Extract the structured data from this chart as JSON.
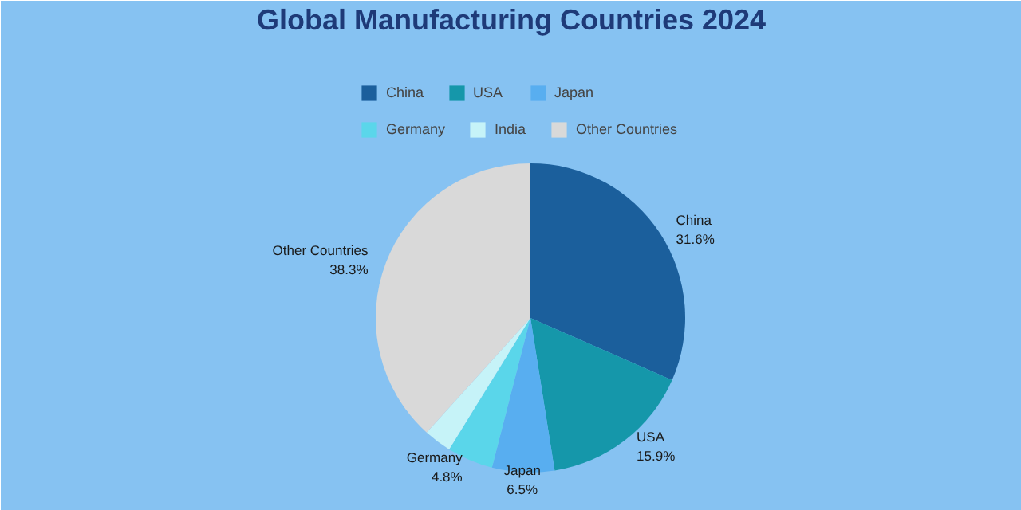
{
  "chart_data": {
    "type": "pie",
    "title": "Global Manufacturing Countries 2024",
    "categories": [
      "China",
      "USA",
      "Japan",
      "Germany",
      "India",
      "Other Countries"
    ],
    "values": [
      31.6,
      15.9,
      6.5,
      4.8,
      2.9,
      38.3
    ],
    "colors": [
      "#1b5f9c",
      "#1597aa",
      "#58aef0",
      "#5ad6ea",
      "#c6f3f8",
      "#d9d9d9"
    ],
    "value_labels": [
      "31.6%",
      "15.9%",
      "6.5%",
      "4.8%",
      null,
      "38.3%"
    ],
    "legend": "top"
  }
}
